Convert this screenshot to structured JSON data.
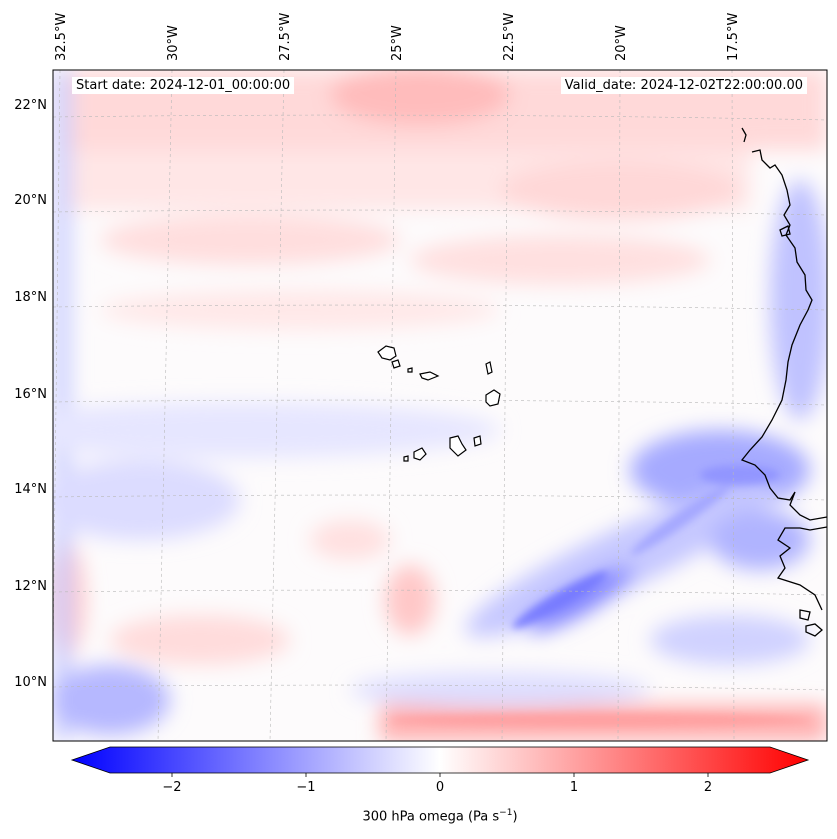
{
  "map": {
    "start_label": "Start date: 2024-12-01_00:00:00",
    "valid_label": "Valid_date: 2024-12-02T22:00:00.00",
    "lon_ticks": [
      "32.5°W",
      "30°W",
      "27.5°W",
      "25°W",
      "22.5°W",
      "20°W",
      "17.5°W"
    ],
    "lat_ticks": [
      "22°N",
      "20°N",
      "18°N",
      "16°N",
      "14°N",
      "12°N",
      "10°N"
    ],
    "field": "300 hPa omega"
  },
  "colorbar": {
    "ticks": [
      "−2",
      "−1",
      "0",
      "1",
      "2"
    ],
    "label_main": "300 hPa omega (Pa s",
    "label_sup": "−1",
    "label_end": ")",
    "colors": {
      "neg": "#0000ff",
      "zero": "#ffffff",
      "pos": "#ff0000"
    }
  }
}
